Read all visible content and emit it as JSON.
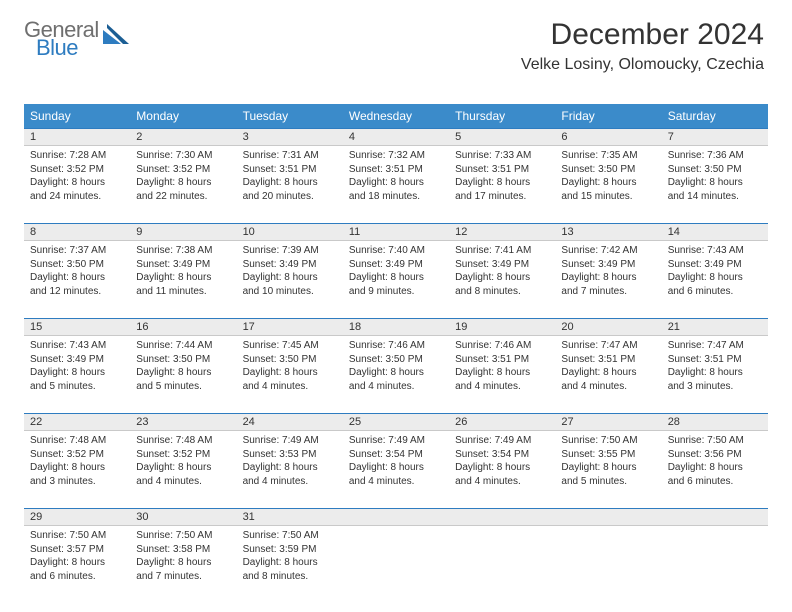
{
  "logo": {
    "line1": "General",
    "line2": "Blue"
  },
  "header": {
    "month": "December 2024",
    "location": "Velke Losiny, Olomoucky, Czechia"
  },
  "colors": {
    "header_bg": "#3b8bca",
    "header_fg": "#ffffff",
    "daynum_bg": "#ececec",
    "row_border": "#2e7cc0",
    "logo_gray": "#6f6f6f",
    "logo_blue": "#2e7cc0"
  },
  "weekdays": [
    "Sunday",
    "Monday",
    "Tuesday",
    "Wednesday",
    "Thursday",
    "Friday",
    "Saturday"
  ],
  "days": [
    {
      "n": "1",
      "sr": "7:28 AM",
      "ss": "3:52 PM",
      "d1": "Daylight: 8 hours",
      "d2": "and 24 minutes."
    },
    {
      "n": "2",
      "sr": "7:30 AM",
      "ss": "3:52 PM",
      "d1": "Daylight: 8 hours",
      "d2": "and 22 minutes."
    },
    {
      "n": "3",
      "sr": "7:31 AM",
      "ss": "3:51 PM",
      "d1": "Daylight: 8 hours",
      "d2": "and 20 minutes."
    },
    {
      "n": "4",
      "sr": "7:32 AM",
      "ss": "3:51 PM",
      "d1": "Daylight: 8 hours",
      "d2": "and 18 minutes."
    },
    {
      "n": "5",
      "sr": "7:33 AM",
      "ss": "3:51 PM",
      "d1": "Daylight: 8 hours",
      "d2": "and 17 minutes."
    },
    {
      "n": "6",
      "sr": "7:35 AM",
      "ss": "3:50 PM",
      "d1": "Daylight: 8 hours",
      "d2": "and 15 minutes."
    },
    {
      "n": "7",
      "sr": "7:36 AM",
      "ss": "3:50 PM",
      "d1": "Daylight: 8 hours",
      "d2": "and 14 minutes."
    },
    {
      "n": "8",
      "sr": "7:37 AM",
      "ss": "3:50 PM",
      "d1": "Daylight: 8 hours",
      "d2": "and 12 minutes."
    },
    {
      "n": "9",
      "sr": "7:38 AM",
      "ss": "3:49 PM",
      "d1": "Daylight: 8 hours",
      "d2": "and 11 minutes."
    },
    {
      "n": "10",
      "sr": "7:39 AM",
      "ss": "3:49 PM",
      "d1": "Daylight: 8 hours",
      "d2": "and 10 minutes."
    },
    {
      "n": "11",
      "sr": "7:40 AM",
      "ss": "3:49 PM",
      "d1": "Daylight: 8 hours",
      "d2": "and 9 minutes."
    },
    {
      "n": "12",
      "sr": "7:41 AM",
      "ss": "3:49 PM",
      "d1": "Daylight: 8 hours",
      "d2": "and 8 minutes."
    },
    {
      "n": "13",
      "sr": "7:42 AM",
      "ss": "3:49 PM",
      "d1": "Daylight: 8 hours",
      "d2": "and 7 minutes."
    },
    {
      "n": "14",
      "sr": "7:43 AM",
      "ss": "3:49 PM",
      "d1": "Daylight: 8 hours",
      "d2": "and 6 minutes."
    },
    {
      "n": "15",
      "sr": "7:43 AM",
      "ss": "3:49 PM",
      "d1": "Daylight: 8 hours",
      "d2": "and 5 minutes."
    },
    {
      "n": "16",
      "sr": "7:44 AM",
      "ss": "3:50 PM",
      "d1": "Daylight: 8 hours",
      "d2": "and 5 minutes."
    },
    {
      "n": "17",
      "sr": "7:45 AM",
      "ss": "3:50 PM",
      "d1": "Daylight: 8 hours",
      "d2": "and 4 minutes."
    },
    {
      "n": "18",
      "sr": "7:46 AM",
      "ss": "3:50 PM",
      "d1": "Daylight: 8 hours",
      "d2": "and 4 minutes."
    },
    {
      "n": "19",
      "sr": "7:46 AM",
      "ss": "3:51 PM",
      "d1": "Daylight: 8 hours",
      "d2": "and 4 minutes."
    },
    {
      "n": "20",
      "sr": "7:47 AM",
      "ss": "3:51 PM",
      "d1": "Daylight: 8 hours",
      "d2": "and 4 minutes."
    },
    {
      "n": "21",
      "sr": "7:47 AM",
      "ss": "3:51 PM",
      "d1": "Daylight: 8 hours",
      "d2": "and 3 minutes."
    },
    {
      "n": "22",
      "sr": "7:48 AM",
      "ss": "3:52 PM",
      "d1": "Daylight: 8 hours",
      "d2": "and 3 minutes."
    },
    {
      "n": "23",
      "sr": "7:48 AM",
      "ss": "3:52 PM",
      "d1": "Daylight: 8 hours",
      "d2": "and 4 minutes."
    },
    {
      "n": "24",
      "sr": "7:49 AM",
      "ss": "3:53 PM",
      "d1": "Daylight: 8 hours",
      "d2": "and 4 minutes."
    },
    {
      "n": "25",
      "sr": "7:49 AM",
      "ss": "3:54 PM",
      "d1": "Daylight: 8 hours",
      "d2": "and 4 minutes."
    },
    {
      "n": "26",
      "sr": "7:49 AM",
      "ss": "3:54 PM",
      "d1": "Daylight: 8 hours",
      "d2": "and 4 minutes."
    },
    {
      "n": "27",
      "sr": "7:50 AM",
      "ss": "3:55 PM",
      "d1": "Daylight: 8 hours",
      "d2": "and 5 minutes."
    },
    {
      "n": "28",
      "sr": "7:50 AM",
      "ss": "3:56 PM",
      "d1": "Daylight: 8 hours",
      "d2": "and 6 minutes."
    },
    {
      "n": "29",
      "sr": "7:50 AM",
      "ss": "3:57 PM",
      "d1": "Daylight: 8 hours",
      "d2": "and 6 minutes."
    },
    {
      "n": "30",
      "sr": "7:50 AM",
      "ss": "3:58 PM",
      "d1": "Daylight: 8 hours",
      "d2": "and 7 minutes."
    },
    {
      "n": "31",
      "sr": "7:50 AM",
      "ss": "3:59 PM",
      "d1": "Daylight: 8 hours",
      "d2": "and 8 minutes."
    }
  ],
  "labels": {
    "sunrise": "Sunrise: ",
    "sunset": "Sunset: "
  }
}
